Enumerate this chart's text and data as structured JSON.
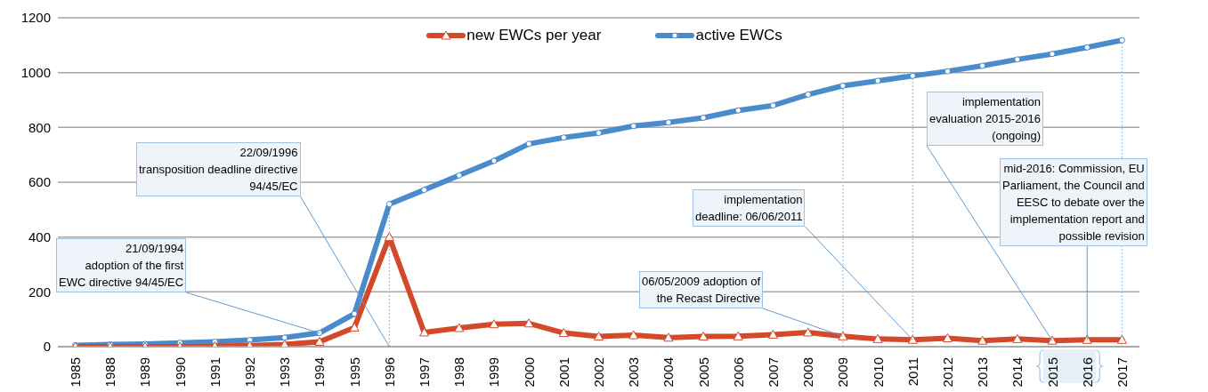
{
  "chart_data": {
    "type": "line",
    "categories": [
      "1985",
      "1988",
      "1989",
      "1990",
      "1991",
      "1992",
      "1993",
      "1994",
      "1995",
      "1996",
      "1997",
      "1998",
      "1999",
      "2000",
      "2001",
      "2002",
      "2003",
      "2004",
      "2005",
      "2006",
      "2007",
      "2008",
      "2009",
      "2010",
      "2011",
      "2012",
      "2013",
      "2014",
      "2015",
      "2016",
      "2017"
    ],
    "series": [
      {
        "name": "new EWCs per year",
        "color": "#d5492b",
        "marker": "triangle",
        "values": [
          0,
          0,
          0,
          0,
          2,
          4,
          8,
          18,
          70,
          400,
          52,
          68,
          82,
          85,
          50,
          37,
          42,
          33,
          37,
          38,
          44,
          52,
          38,
          28,
          25,
          31,
          22,
          28,
          22,
          25,
          25
        ]
      },
      {
        "name": "active EWCs",
        "color": "#4a8bcc",
        "marker": "circle",
        "values": [
          5,
          8,
          10,
          14,
          18,
          24,
          33,
          50,
          120,
          520,
          572,
          625,
          678,
          740,
          763,
          780,
          805,
          818,
          835,
          862,
          880,
          920,
          952,
          970,
          988,
          1005,
          1025,
          1048,
          1068,
          1092,
          1118
        ]
      }
    ],
    "ylim": [
      0,
      1200
    ],
    "yticks": [
      0,
      200,
      400,
      600,
      800,
      1000,
      1200
    ],
    "grid": "y",
    "legend": "top",
    "line_style": "solid",
    "ref_lines": [
      {
        "axis": "x",
        "value": "1996",
        "color": "#9dc3e6",
        "line_style": "dotted"
      },
      {
        "axis": "x",
        "value": "2009",
        "color": "#9dc3e6",
        "line_style": "dotted"
      },
      {
        "axis": "x",
        "value": "2011",
        "color": "#9dc3e6",
        "line_style": "dotted"
      },
      {
        "axis": "x",
        "value": "2017",
        "color": "#9dc3e6",
        "line_style": "dotted"
      }
    ],
    "annotations": [
      {
        "text": "21/09/1994\nadoption of the first\nEWC directive 94/45/EC",
        "x": "1994",
        "y": 50
      },
      {
        "text": "22/09/1996\ntransposition deadline directive\n94/45/EC",
        "x": "1996",
        "y": 0
      },
      {
        "text": "implementation\ndeadline: 06/06/2011",
        "x": "2011",
        "y": 25
      },
      {
        "text": "06/05/2009 adoption of\nthe Recast Directive",
        "x": "2009",
        "y": 38
      },
      {
        "text": "implementation\nevaluation 2015-2016\n(ongoing)",
        "x": "2015",
        "y": 22
      },
      {
        "text": "mid-2016: Commission, EU\nParliament, the Council and\nEESC to debate over the\nimplementation report and\npossible revision",
        "x": "2016",
        "y": 25
      }
    ]
  }
}
